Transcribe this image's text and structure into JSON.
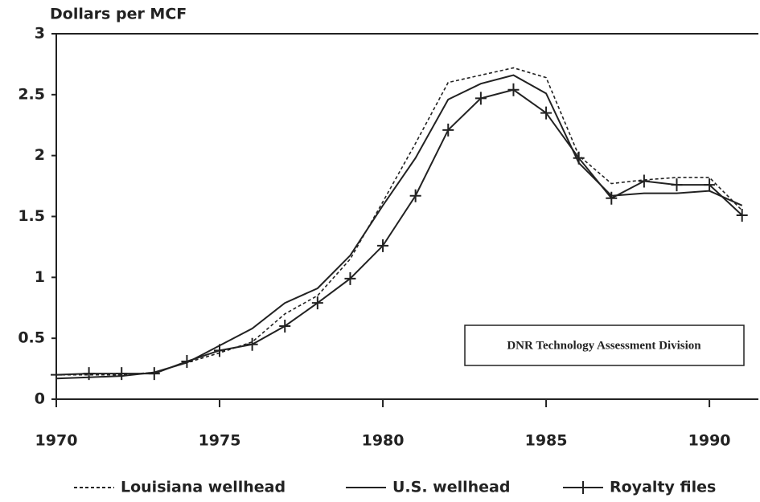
{
  "chart_data": {
    "type": "line",
    "y_label": "Dollars per MCF",
    "annotation": "DNR Technology Assessment Division",
    "x": [
      1970,
      1971,
      1972,
      1973,
      1974,
      1975,
      1976,
      1977,
      1978,
      1979,
      1980,
      1981,
      1982,
      1983,
      1984,
      1985,
      1986,
      1987,
      1988,
      1989,
      1990,
      1991
    ],
    "series": [
      {
        "name": "Louisiana wellhead",
        "color": "#222222",
        "style": "dashed",
        "values": [
          0.2,
          0.2,
          0.2,
          0.22,
          0.3,
          0.38,
          0.47,
          0.7,
          0.85,
          1.15,
          1.62,
          2.1,
          2.6,
          2.66,
          2.72,
          2.64,
          2.0,
          1.77,
          1.8,
          1.82,
          1.82,
          1.55
        ]
      },
      {
        "name": "U.S. wellhead",
        "color": "#222222",
        "style": "solid",
        "values": [
          0.17,
          0.18,
          0.19,
          0.22,
          0.3,
          0.44,
          0.58,
          0.79,
          0.91,
          1.18,
          1.59,
          1.98,
          2.46,
          2.59,
          2.66,
          2.51,
          1.94,
          1.67,
          1.69,
          1.69,
          1.71,
          1.59
        ]
      },
      {
        "name": "Royalty files",
        "color": "#222222",
        "style": "plus",
        "values": [
          0.2,
          0.21,
          0.21,
          0.21,
          0.31,
          0.4,
          0.45,
          0.6,
          0.79,
          0.99,
          1.26,
          1.67,
          2.21,
          2.47,
          2.54,
          2.35,
          1.98,
          1.65,
          1.79,
          1.76,
          1.76,
          1.51
        ]
      }
    ],
    "xlim": [
      1970,
      1991.5
    ],
    "xticks": [
      1970,
      1975,
      1980,
      1985,
      1990
    ],
    "ylim": [
      0,
      3
    ],
    "yticks": [
      0,
      0.5,
      1,
      1.5,
      2,
      2.5,
      3
    ],
    "legend": "bottom"
  }
}
